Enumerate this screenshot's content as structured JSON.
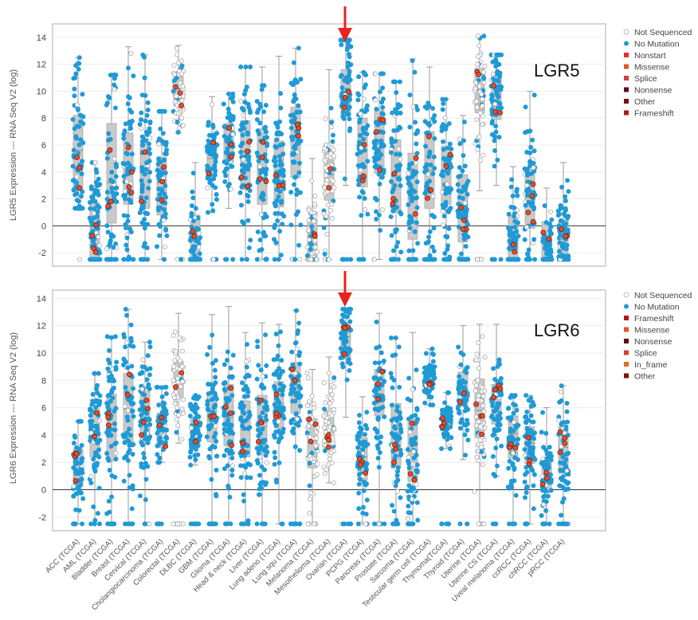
{
  "categories": [
    "ACC (TCGA)",
    "AML (TCGA)",
    "Bladder (TCGA)",
    "Breast (TCGA)",
    "Cervical (TCGA)",
    "Cholangiocarcinoma (TCGA)",
    "Colorectal (TCGA)",
    "DLBC (TCGA)",
    "GBM (TCGA)",
    "Glioma (TCGA)",
    "Head & neck (TCGA)",
    "Liver (TCGA)",
    "Lung adeno (TCGA)",
    "Lung squ (TCGA)",
    "Melanoma (TCGA)",
    "Mesothelioma (TCGA)",
    "Ovarian (TCGA)",
    "PCPG (TCGA)",
    "Pancreas (TCGA)",
    "Prostate (TCGA)",
    "Sarcoma (TCGA)",
    "Testicular germ cell (TCGA)",
    "Thymoma(TCGA)",
    "Thyroid (TCGA)",
    "Uterine (TCGA)",
    "Uterine CS (TCGA)",
    "Uveal melanoma (TCGA)",
    "ccRCC (TCGA)",
    "chRCC (TCGA)",
    "pRCC (TCGA)"
  ],
  "chart_data": [
    {
      "type": "scatter",
      "gene_label": "LGR5",
      "ylabel": "LGR5 Expression --- RNA Seq V2 (log)",
      "ylim": [
        -3,
        15
      ],
      "yticks": [
        -2,
        0,
        2,
        4,
        6,
        8,
        10,
        12,
        14
      ],
      "grid": true,
      "legend_position": "right",
      "legend": [
        "Not Sequenced",
        "No Mutation",
        "Nonstart",
        "Missense",
        "Splice",
        "Nonsense",
        "Other",
        "Frameshift"
      ],
      "legend_colors": [
        "#bbbbbb",
        "#1f9ad6",
        "#e0302a",
        "#e05a2a",
        "#d0403a",
        "#5a1020",
        "#7a1010",
        "#b01818"
      ],
      "highlighted_category": "Ovarian (TCGA)",
      "series": [
        {
          "name": "box",
          "boxes": [
            [
              1.3,
              2.6,
              5.6,
              8.2,
              12.5
            ],
            [
              -2.5,
              -2.5,
              0.5,
              1.7,
              4.7
            ],
            [
              -2.5,
              0.2,
              3.2,
              7.6,
              11.2
            ],
            [
              -2.5,
              1.6,
              4.3,
              6.9,
              13.3
            ],
            [
              -2.5,
              1.3,
              3.9,
              6.1,
              12.7
            ],
            [
              -2.5,
              0.8,
              3.2,
              5.1,
              8.5
            ],
            [
              6.9,
              8.9,
              10.3,
              11.1,
              13.4
            ],
            [
              -2.5,
              -2.5,
              -2.5,
              0.8,
              4.7
            ],
            [
              1.0,
              3.7,
              5.0,
              6.2,
              9.6
            ],
            [
              1.3,
              4.7,
              6.2,
              7.6,
              9.8
            ],
            [
              -2.5,
              2.7,
              5.5,
              7.8,
              11.8
            ],
            [
              -2.5,
              1.6,
              4.2,
              7.2,
              11.8
            ],
            [
              -2.5,
              1.4,
              3.7,
              6.3,
              12.6
            ],
            [
              -2.5,
              3.6,
              6.4,
              8.8,
              13.2
            ],
            [
              -2.5,
              -2.5,
              -1.4,
              0.5,
              5.0
            ],
            [
              -2.5,
              1.9,
              3.8,
              5.7,
              11.6
            ],
            [
              3.0,
              8.2,
              10.2,
              11.6,
              13.8
            ],
            [
              -2.5,
              2.9,
              6.0,
              8.0,
              11.4
            ],
            [
              -2.5,
              3.9,
              6.3,
              8.6,
              11.3
            ],
            [
              -2.5,
              1.0,
              3.7,
              6.4,
              10.7
            ],
            [
              -2.5,
              -1.0,
              2.0,
              5.4,
              12.4
            ],
            [
              -2.5,
              1.3,
              4.1,
              7.0,
              11.8
            ],
            [
              -2.5,
              1.6,
              4.0,
              5.9,
              9.4
            ],
            [
              -2.5,
              -1.2,
              1.2,
              3.8,
              8.2
            ],
            [
              2.6,
              8.4,
              10.0,
              11.7,
              14.1
            ],
            [
              3.0,
              7.9,
              9.8,
              11.4,
              12.7
            ],
            [
              -2.5,
              -2.5,
              -1.1,
              0.8,
              4.4
            ],
            [
              -2.5,
              -0.2,
              2.1,
              4.2,
              10.0
            ],
            [
              -2.5,
              -2.5,
              -2.5,
              0.3,
              2.8
            ],
            [
              -2.5,
              -2.5,
              -0.5,
              0.4,
              4.7
            ]
          ]
        }
      ]
    },
    {
      "type": "scatter",
      "gene_label": "LGR6",
      "ylabel": "LGR6 Expression --- RNA Seq V2 (log)",
      "ylim": [
        -3,
        14.6
      ],
      "yticks": [
        -2,
        0,
        2,
        4,
        6,
        8,
        10,
        12,
        14
      ],
      "grid": true,
      "legend_position": "right",
      "legend": [
        "Not Sequenced",
        "No Mutation",
        "Frameshift",
        "Missense",
        "Nonsense",
        "Splice",
        "In_frame",
        "Other"
      ],
      "legend_colors": [
        "#bbbbbb",
        "#1f9ad6",
        "#b01818",
        "#e05a2a",
        "#5a1020",
        "#d0403a",
        "#e07020",
        "#7a1010"
      ],
      "highlighted_category": "Ovarian (TCGA)",
      "series": [
        {
          "name": "box",
          "boxes": [
            [
              -2.5,
              0.2,
              1.3,
              3.0,
              5.0
            ],
            [
              -2.5,
              2.4,
              4.3,
              5.9,
              8.5
            ],
            [
              -2.5,
              2.1,
              4.8,
              7.0,
              11.2
            ],
            [
              -2.5,
              3.4,
              5.9,
              8.5,
              13.2
            ],
            [
              -2.5,
              3.4,
              5.9,
              7.2,
              10.8
            ],
            [
              2.0,
              3.1,
              4.8,
              5.6,
              7.5
            ],
            [
              3.4,
              6.7,
              8.0,
              9.4,
              12.9
            ],
            [
              1.8,
              3.2,
              4.3,
              5.3,
              6.9
            ],
            [
              -2.5,
              3.5,
              5.4,
              7.0,
              12.8
            ],
            [
              -2.5,
              3.2,
              5.3,
              7.7,
              13.4
            ],
            [
              -2.5,
              2.4,
              4.4,
              6.5,
              11.5
            ],
            [
              -2.5,
              2.6,
              4.6,
              6.9,
              12.2
            ],
            [
              -2.5,
              4.5,
              6.3,
              7.9,
              12.1
            ],
            [
              -2.5,
              5.6,
              7.9,
              9.3,
              13.1
            ],
            [
              -2.5,
              1.6,
              3.6,
              5.2,
              8.8
            ],
            [
              0.5,
              3.0,
              4.6,
              5.8,
              9.7
            ],
            [
              5.3,
              9.6,
              11.2,
              12.0,
              13.2
            ],
            [
              -2.5,
              0.7,
              2.4,
              3.8,
              6.8
            ],
            [
              -2.5,
              5.4,
              7.0,
              8.8,
              12.9
            ],
            [
              -2.5,
              1.6,
              3.9,
              6.3,
              11.1
            ],
            [
              -2.5,
              0.6,
              2.8,
              5.2,
              11.5
            ],
            [
              6.2,
              7.6,
              8.2,
              9.0,
              10.3
            ],
            [
              3.0,
              4.5,
              5.1,
              5.9,
              7.1
            ],
            [
              2.2,
              6.2,
              7.2,
              8.6,
              12.0
            ],
            [
              -2.5,
              3.8,
              5.8,
              8.1,
              12.1
            ],
            [
              1.0,
              4.8,
              6.3,
              7.7,
              12.1
            ],
            [
              -2.5,
              2.3,
              4.1,
              5.4,
              6.9
            ],
            [
              -2.5,
              1.9,
              3.4,
              4.6,
              6.9
            ],
            [
              -2.5,
              -0.2,
              0.9,
              2.2,
              6.0
            ],
            [
              -2.5,
              1.2,
              3.1,
              4.6,
              7.6
            ]
          ]
        }
      ]
    }
  ]
}
